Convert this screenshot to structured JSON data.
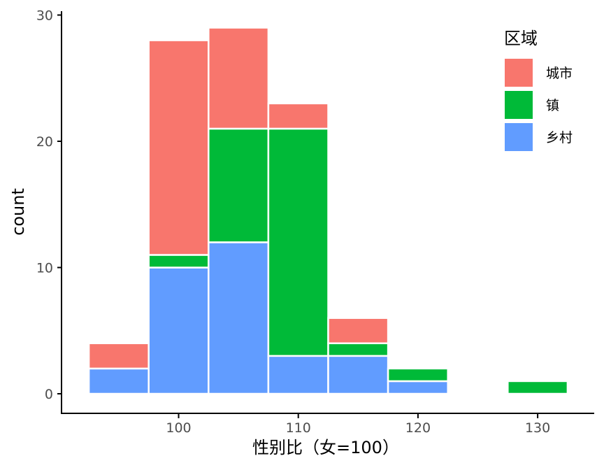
{
  "chart_data": {
    "type": "bar",
    "subtype": "stacked-histogram",
    "xlabel": "性别比（女=100）",
    "ylabel": "count",
    "xlim": [
      90,
      135
    ],
    "ylim": [
      0,
      30
    ],
    "xticks": [
      100,
      110,
      120,
      130
    ],
    "yticks": [
      0,
      10,
      20,
      30
    ],
    "bin_edges": [
      [
        92.5,
        97.5
      ],
      [
        97.5,
        102.5
      ],
      [
        102.5,
        107.5
      ],
      [
        107.5,
        112.5
      ],
      [
        112.5,
        117.5
      ],
      [
        117.5,
        122.5
      ],
      [
        122.5,
        127.5
      ],
      [
        127.5,
        132.5
      ]
    ],
    "stack_order_bottom_to_top": [
      "乡村",
      "镇",
      "城市"
    ],
    "series": [
      {
        "name": "城市",
        "color": "#F8766D",
        "values": [
          2,
          17,
          8,
          2,
          2,
          0,
          0,
          0
        ]
      },
      {
        "name": "镇",
        "color": "#00BA38",
        "values": [
          0,
          1,
          9,
          18,
          1,
          1,
          0,
          1
        ]
      },
      {
        "name": "乡村",
        "color": "#619CFF",
        "values": [
          2,
          10,
          12,
          3,
          3,
          1,
          0,
          0
        ]
      }
    ],
    "legend": {
      "title": "区域",
      "position": "top-right"
    },
    "grid": false
  }
}
